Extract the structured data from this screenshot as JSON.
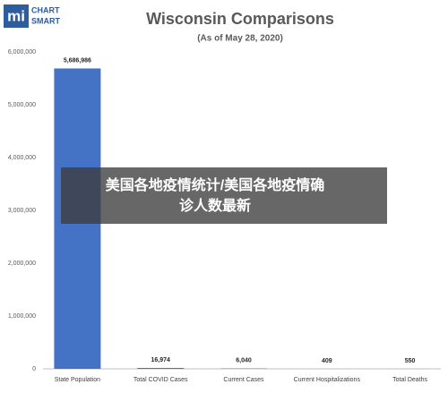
{
  "chart_data": {
    "type": "bar",
    "title": "Wisconsin Comparisons",
    "subtitle": "(As of May 28, 2020)",
    "logo": {
      "mark": "mi",
      "line1": "CHART",
      "line2": "SMART"
    },
    "categories": [
      "State Population",
      "Total COVID Cases",
      "Current Cases",
      "Current Hospitalizations",
      "Total Deaths"
    ],
    "values": [
      5686986,
      16974,
      6040,
      409,
      550
    ],
    "value_labels": [
      "5,686,986",
      "16,974",
      "6,040",
      "409",
      "550"
    ],
    "color": "#4472c4",
    "ylim": [
      0,
      6000000
    ],
    "yticks": [
      0,
      {
        "value": 1000000,
        "label": "1,000,000"
      },
      {
        "value": 2000000,
        "label": "2,000,000"
      },
      {
        "value": 3000000,
        "label": "3,000,000"
      },
      {
        "value": 4000000,
        "label": "4,000,000"
      },
      {
        "value": 5000000,
        "label": "5,000,000"
      },
      {
        "value": 6000000,
        "label": "6,000,000"
      }
    ],
    "grid": false
  },
  "overlay": {
    "lines": [
      "美国各地疫情统计/美国各地疫情确",
      "诊人数最新"
    ]
  }
}
